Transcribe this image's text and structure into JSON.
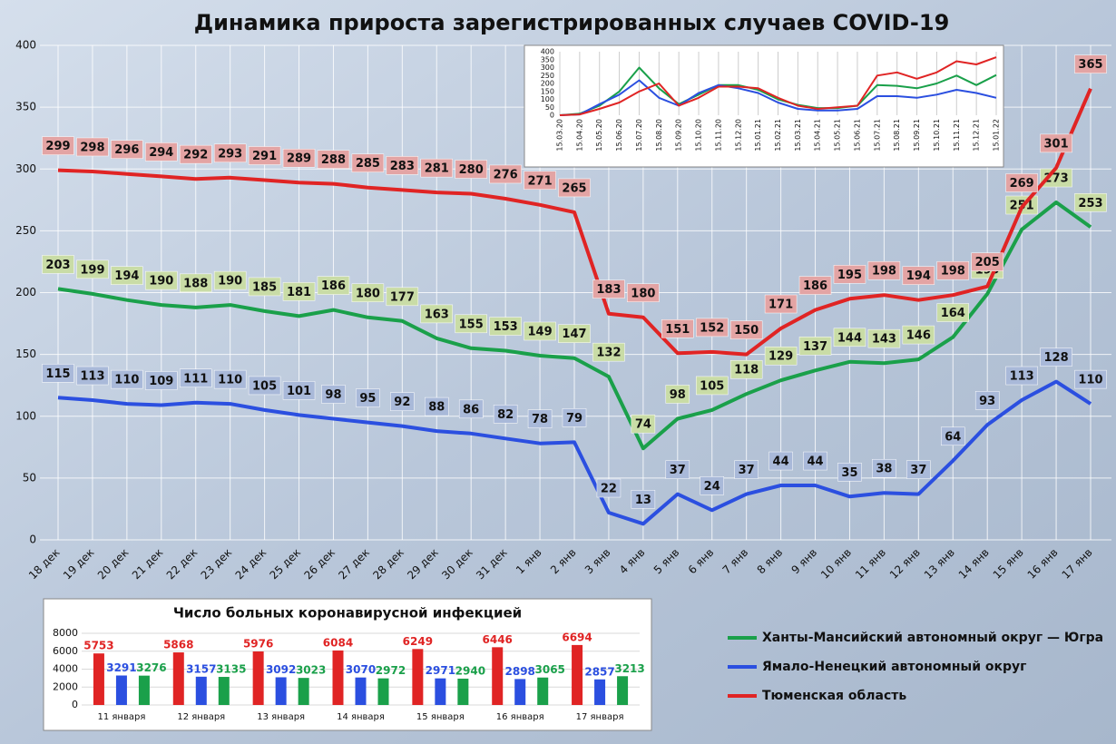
{
  "chart_data": [
    {
      "type": "line",
      "title": "Динамика прироста зарегистрированных случаев COVID-19",
      "categories": [
        "18 дек",
        "19 дек",
        "20 дек",
        "21 дек",
        "22 дек",
        "23 дек",
        "24 дек",
        "25 дек",
        "26 дек",
        "27 дек",
        "28 дек",
        "29 дек",
        "30 дек",
        "31 дек",
        "1 янв",
        "2 янв",
        "3 янв",
        "4 янв",
        "5 янв",
        "6 янв",
        "7 янв",
        "8 янв",
        "9 янв",
        "10 янв",
        "11 янв",
        "12 янв",
        "13 янв",
        "14 янв",
        "15 янв",
        "16 янв",
        "17 янв"
      ],
      "series": [
        {
          "name": "Ханты-Мансийский автономный округ — Югра",
          "color": "#1aa04a",
          "label_color": "#c9dca6",
          "values": [
            203,
            199,
            194,
            190,
            188,
            190,
            185,
            181,
            186,
            180,
            177,
            163,
            155,
            153,
            149,
            147,
            132,
            74,
            98,
            105,
            118,
            129,
            137,
            144,
            143,
            146,
            164,
            199,
            251,
            273,
            253
          ]
        },
        {
          "name": "Ямало-Ненецкий автономный округ",
          "color": "#2b4fe0",
          "label_color": "#a9b9d9",
          "values": [
            115,
            113,
            110,
            109,
            111,
            110,
            105,
            101,
            98,
            95,
            92,
            88,
            86,
            82,
            78,
            79,
            22,
            13,
            37,
            24,
            37,
            44,
            44,
            35,
            38,
            37,
            64,
            93,
            113,
            128,
            110
          ]
        },
        {
          "name": "Тюменская область",
          "color": "#e02424",
          "label_color": "#e3a4a4",
          "values": [
            299,
            298,
            296,
            294,
            292,
            293,
            291,
            289,
            288,
            285,
            283,
            281,
            280,
            276,
            271,
            265,
            183,
            180,
            151,
            152,
            150,
            171,
            186,
            195,
            198,
            194,
            198,
            205,
            269,
            301,
            365
          ]
        }
      ],
      "ylim": [
        0,
        400
      ],
      "yticks": [
        0,
        50,
        100,
        150,
        200,
        250,
        300,
        350,
        400
      ],
      "grid": true
    },
    {
      "type": "line",
      "categories": [
        "15.03.20",
        "15.04.20",
        "15.05.20",
        "15.06.20",
        "15.07.20",
        "15.08.20",
        "15.09.20",
        "15.10.20",
        "15.11.20",
        "15.12.20",
        "15.01.21",
        "15.02.21",
        "15.03.21",
        "15.04.21",
        "15.05.21",
        "15.06.21",
        "15.07.21",
        "15.08.21",
        "15.09.21",
        "15.10.21",
        "15.11.21",
        "15.12.21",
        "15.01.22"
      ],
      "series": [
        {
          "color": "#1aa04a",
          "values": [
            0,
            10,
            60,
            150,
            300,
            170,
            70,
            130,
            190,
            190,
            160,
            100,
            65,
            45,
            45,
            60,
            190,
            185,
            170,
            200,
            250,
            190,
            253
          ]
        },
        {
          "color": "#2b4fe0",
          "values": [
            0,
            5,
            70,
            130,
            220,
            110,
            60,
            140,
            190,
            170,
            140,
            80,
            40,
            30,
            30,
            40,
            120,
            120,
            110,
            130,
            160,
            140,
            110
          ]
        },
        {
          "color": "#e02424",
          "values": [
            0,
            5,
            40,
            80,
            150,
            200,
            60,
            110,
            180,
            180,
            170,
            110,
            60,
            40,
            50,
            60,
            250,
            270,
            230,
            270,
            340,
            320,
            365
          ]
        }
      ],
      "ylim": [
        0,
        400
      ],
      "yticks": [
        0,
        50,
        100,
        150,
        200,
        250,
        300,
        350,
        400
      ],
      "grid": true
    },
    {
      "type": "bar",
      "title": "Число больных коронавирусной  инфекцией",
      "categories": [
        "11 января",
        "12 января",
        "13 января",
        "14 января",
        "15 января",
        "16 января",
        "17 января"
      ],
      "series": [
        {
          "color": "#e02424",
          "values": [
            5753,
            5868,
            5976,
            6084,
            6249,
            6446,
            6694
          ]
        },
        {
          "color": "#2b4fe0",
          "values": [
            3291,
            3157,
            3092,
            3070,
            2971,
            2898,
            2857
          ]
        },
        {
          "color": "#1aa04a",
          "values": [
            3276,
            3135,
            3023,
            2972,
            2940,
            3065,
            3213
          ]
        }
      ],
      "ylim": [
        0,
        8000
      ],
      "yticks": [
        0,
        2000,
        4000,
        6000,
        8000
      ],
      "grid": true
    }
  ]
}
